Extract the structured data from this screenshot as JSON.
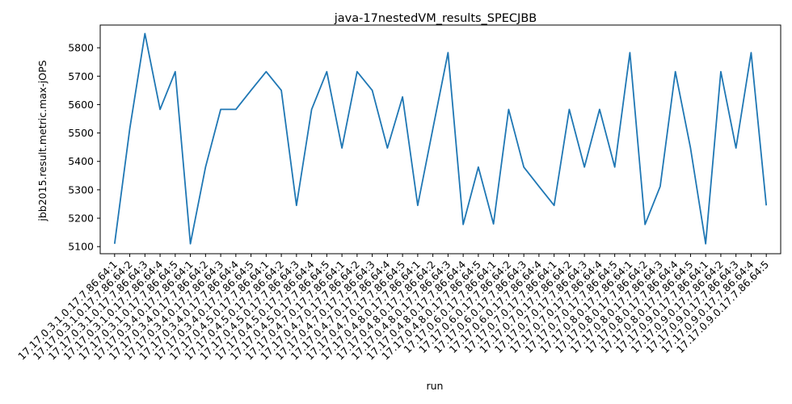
{
  "chart_data": {
    "type": "line",
    "title": "java-17nestedVM_results_SPECJBB",
    "xlabel": "run",
    "ylabel": "jbb2015.result.metric.max-jOPS",
    "ylim": [
      5075,
      5880
    ],
    "yticks": [
      5100,
      5200,
      5300,
      5400,
      5500,
      5600,
      5700,
      5800
    ],
    "grid": false,
    "categories": [
      "17.17.0.3.1.0.17.7.86.64:1",
      "17.17.0.3.1.0.17.7.86.64:2",
      "17.17.0.3.1.0.17.7.86.64:3",
      "17.17.0.3.1.0.17.7.86.64:4",
      "17.17.0.3.1.0.17.7.86.64:5",
      "17.17.0.3.4.0.17.7.86.64:1",
      "17.17.0.3.4.0.17.7.86.64:2",
      "17.17.0.3.4.0.17.7.86.64:3",
      "17.17.0.3.4.0.17.7.86.64:4",
      "17.17.0.3.4.0.17.7.86.64:5",
      "17.17.0.4.5.0.17.7.86.64:1",
      "17.17.0.4.5.0.17.7.86.64:2",
      "17.17.0.4.5.0.17.7.86.64:3",
      "17.17.0.4.5.0.17.7.86.64:4",
      "17.17.0.4.5.0.17.7.86.64:5",
      "17.17.0.4.7.0.17.7.86.64:1",
      "17.17.0.4.7.0.17.7.86.64:2",
      "17.17.0.4.7.0.17.7.86.64:3",
      "17.17.0.4.7.0.17.7.86.64:4",
      "17.17.0.4.7.0.17.7.86.64:5",
      "17.17.0.4.8.0.17.7.86.64:1",
      "17.17.0.4.8.0.17.7.86.64:2",
      "17.17.0.4.8.0.17.7.86.64:3",
      "17.17.0.4.8.0.17.7.86.64:4",
      "17.17.0.4.8.0.17.7.86.64:5",
      "17.17.0.6.0.17.7.86.64:1",
      "17.17.0.6.0.17.7.86.64:2",
      "17.17.0.6.0.17.7.86.64:3",
      "17.17.0.6.0.17.7.86.64:4",
      "17.17.0.7.0.17.7.86.64:1",
      "17.17.0.7.0.17.7.86.64:2",
      "17.17.0.7.0.17.7.86.64:3",
      "17.17.0.7.0.17.7.86.64:4",
      "17.17.0.7.0.17.7.86.64:5",
      "17.17.0.8.0.17.7.86.64:1",
      "17.17.0.8.0.17.7.86.64:2",
      "17.17.0.8.0.17.7.86.64:3",
      "17.17.0.8.0.17.7.86.64:4",
      "17.17.0.8.0.17.7.86.64:5",
      "17.17.0.9.0.17.7.86.64:1",
      "17.17.0.9.0.17.7.86.64:2",
      "17.17.0.9.0.17.7.86.64:3",
      "17.17.0.9.0.17.7.86.64:4",
      "17.17.0.9.0.17.7.86.64:5"
    ],
    "series": [
      {
        "color": "#1f77b4",
        "values": [
          5110,
          5515,
          5850,
          5583,
          5716,
          5110,
          5380,
          5583,
          5583,
          5650,
          5716,
          5650,
          5245,
          5583,
          5716,
          5447,
          5716,
          5650,
          5447,
          5627,
          5245,
          5515,
          5783,
          5178,
          5380,
          5180,
          5583,
          5380,
          5312,
          5245,
          5583,
          5380,
          5583,
          5380,
          5783,
          5178,
          5312,
          5716,
          5447,
          5110,
          5716,
          5447,
          5783,
          5245
        ]
      }
    ]
  }
}
